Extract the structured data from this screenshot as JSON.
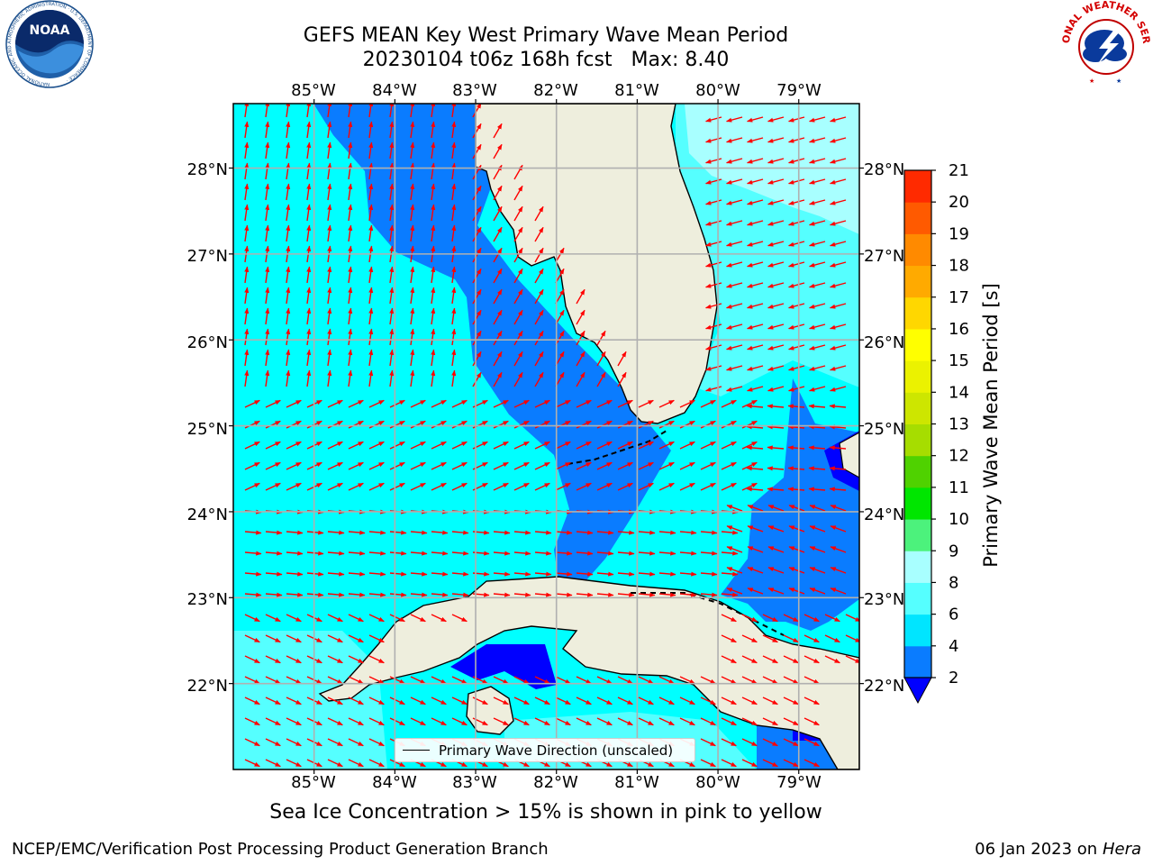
{
  "header": {
    "title_line1": "GEFS MEAN Key West Primary Wave Mean Period",
    "title_line2": "20230104 t06z 168h fcst   Max: 8.40"
  },
  "logos": {
    "noaa": {
      "text": "NOAA",
      "ring_text": "NATIONAL OCEANIC AND ATMOSPHERIC ADMINISTRATION · U.S. DEPARTMENT OF COMMERCE ·"
    },
    "nws": {
      "ring_text": "NATIONAL WEATHER SERVICE"
    }
  },
  "map": {
    "lon_ticks": [
      "85°W",
      "84°W",
      "83°W",
      "82°W",
      "81°W",
      "80°W",
      "79°W"
    ],
    "lat_ticks": [
      "22°N",
      "23°N",
      "24°N",
      "25°N",
      "26°N",
      "27°N",
      "28°N"
    ],
    "lon_range": [
      -86.0,
      -78.25
    ],
    "lat_range": [
      21.0,
      28.75
    ],
    "land_color": "#eeeedd",
    "arrow_color": "#ff0000",
    "grid": true,
    "legend_label": "Primary Wave Direction (unscaled)"
  },
  "colorbar": {
    "label": "Primary Wave Mean Period [s]",
    "tick_labels": [
      "2",
      "4",
      "6",
      "8",
      "9",
      "10",
      "11",
      "12",
      "13",
      "14",
      "15",
      "16",
      "17",
      "18",
      "19",
      "20",
      "21"
    ],
    "levels": [
      2,
      4,
      6,
      8,
      9,
      10,
      11,
      12,
      13,
      14,
      15,
      16,
      17,
      18,
      19,
      20,
      21
    ],
    "colors": [
      "#0a7cff",
      "#00e5ff",
      "#55ffff",
      "#a8ffff",
      "#4cf27c",
      "#00e600",
      "#4fd200",
      "#a6dd00",
      "#cde600",
      "#ebf200",
      "#ffff00",
      "#ffd700",
      "#ffaa00",
      "#ff8a00",
      "#ff5a00",
      "#ff2a00",
      "#ff0000"
    ],
    "under_color": "#0000ff"
  },
  "footer": {
    "sea_ice_note": "Sea Ice Concentration > 15% is shown in pink to yellow",
    "credit_left": "NCEP/EMC/Verification Post Processing Product Generation Branch",
    "credit_date": "06 Jan 2023 on ",
    "credit_machine": "Hera"
  }
}
